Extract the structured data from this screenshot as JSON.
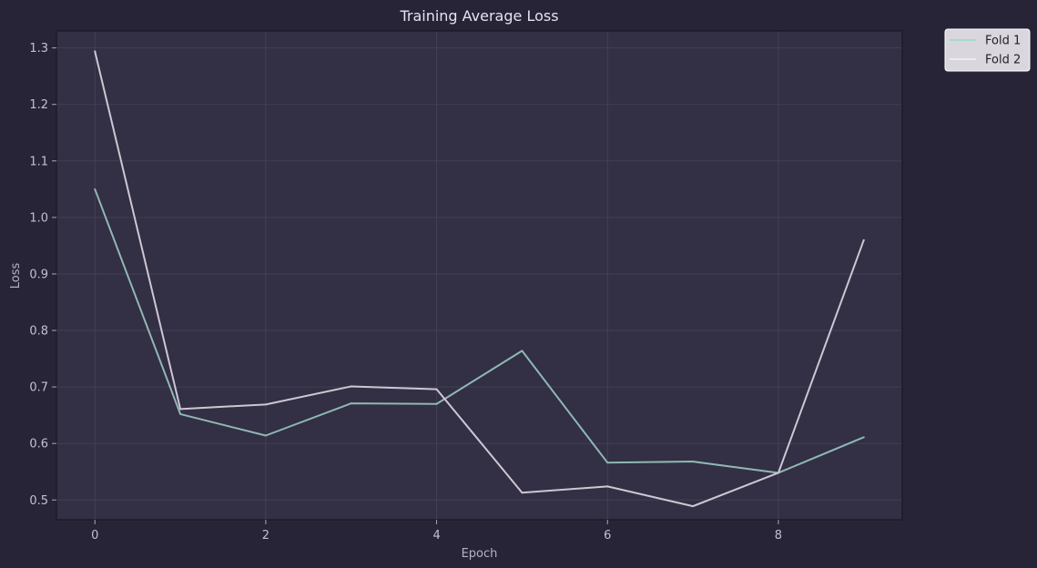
{
  "chart_data": {
    "type": "line",
    "title": "Training Average Loss",
    "xlabel": "Epoch",
    "ylabel": "Loss",
    "x": [
      0,
      1,
      2,
      3,
      4,
      5,
      6,
      7,
      8,
      9
    ],
    "xlim": [
      -0.45,
      9.45
    ],
    "ylim": [
      0.465,
      1.33
    ],
    "xticks": [
      0,
      2,
      4,
      6,
      8
    ],
    "yticks": [
      0.5,
      0.6,
      0.7,
      0.8,
      0.9,
      1.0,
      1.1,
      1.2,
      1.3
    ],
    "xtick_labels": [
      "0",
      "2",
      "4",
      "6",
      "8"
    ],
    "ytick_labels": [
      "0.5",
      "0.6",
      "0.7",
      "0.8",
      "0.9",
      "1.0",
      "1.1",
      "1.2",
      "1.3"
    ],
    "grid": true,
    "legend_position": "outside-top-right",
    "series": [
      {
        "name": "Fold 1",
        "color": "#8fb8b4",
        "legend_color": "#a8d8ce",
        "values": [
          1.05,
          0.652,
          0.614,
          0.671,
          0.67,
          0.764,
          0.566,
          0.568,
          0.548,
          0.611
        ]
      },
      {
        "name": "Fold 2",
        "color": "#cfc6d4",
        "legend_color": "#efeaf2",
        "values": [
          1.294,
          0.661,
          0.669,
          0.701,
          0.696,
          0.513,
          0.524,
          0.489,
          0.548,
          0.96
        ]
      }
    ],
    "colors": {
      "page_background": "#282438",
      "plot_background": "#332f44",
      "grid": "#433f55",
      "axis": "#15131c",
      "legend_background": "#d9d6de",
      "legend_border": "#ffffff"
    }
  }
}
